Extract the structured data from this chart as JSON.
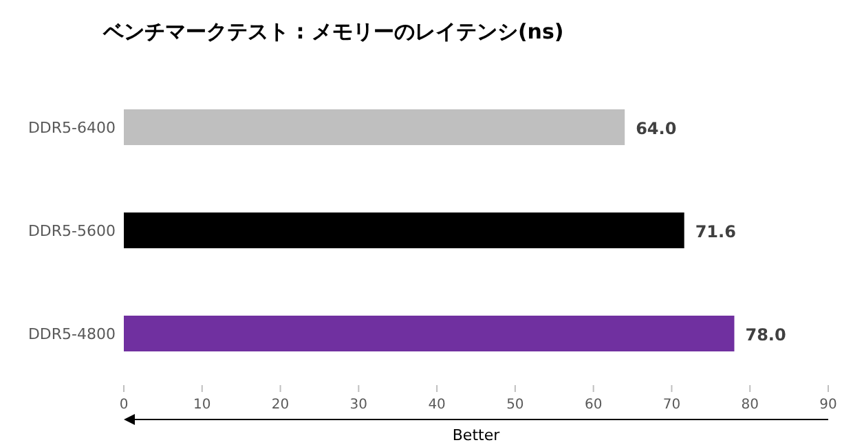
{
  "chart_data": {
    "type": "bar",
    "orientation": "horizontal",
    "title": "ベンチマークテスト : メモリーのレイテンシ(ns)",
    "categories": [
      "DDR5-6400",
      "DDR5-5600",
      "DDR5-4800"
    ],
    "values": [
      64.0,
      71.6,
      78.0
    ],
    "colors": [
      "#bfbfbf",
      "#000000",
      "#7030a0"
    ],
    "value_labels": [
      "64.0",
      "71.6",
      "78.0"
    ],
    "xlim": [
      0,
      90
    ],
    "xticks": [
      0,
      10,
      20,
      30,
      40,
      50,
      60,
      70,
      80,
      90
    ],
    "annotations": [
      "Better"
    ]
  }
}
